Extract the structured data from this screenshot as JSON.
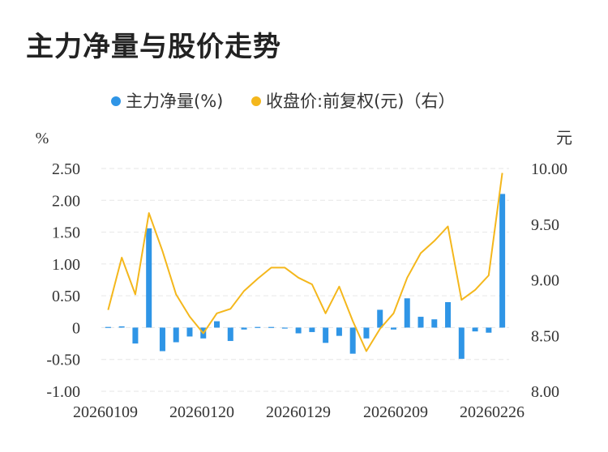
{
  "title": "主力净量与股价走势",
  "colors": {
    "bar": "#2f95e6",
    "line": "#f4b71c",
    "grid": "#e6e6e6",
    "text": "#333333"
  },
  "chart_data": {
    "type": "bar+line",
    "title": "主力净量与股价走势",
    "legend": [
      {
        "name": "主力净量(%)",
        "color": "#2f95e6",
        "marker": "dot"
      },
      {
        "name": "收盘价:前复权(元)（右）",
        "color": "#f4b71c",
        "marker": "dot"
      }
    ],
    "legend_position": "top-center",
    "grid": true,
    "left_axis": {
      "unit": "%",
      "range": [
        -1.0,
        2.5
      ],
      "ticks": [
        "2.50",
        "2.00",
        "1.50",
        "1.00",
        "0.50",
        "0",
        "-0.50",
        "-1.00"
      ]
    },
    "right_axis": {
      "unit": "元",
      "range": [
        8.0,
        10.0
      ],
      "ticks": [
        "10.00",
        "9.50",
        "9.00",
        "8.50",
        "8.00"
      ]
    },
    "x_tick_labels": [
      "20260109",
      "20260120",
      "20260129",
      "20260209",
      "20260226"
    ],
    "series": [
      {
        "name": "主力净量(%)",
        "type": "bar",
        "axis": "left",
        "values": [
          0.01,
          0.02,
          -0.25,
          1.56,
          -0.37,
          -0.23,
          -0.14,
          -0.17,
          0.1,
          -0.21,
          -0.03,
          0.01,
          0.01,
          0.0,
          -0.09,
          -0.07,
          -0.24,
          -0.13,
          -0.41,
          -0.17,
          0.28,
          -0.03,
          0.46,
          0.17,
          0.13,
          0.4,
          -0.49,
          -0.06,
          -0.08,
          2.1
        ]
      },
      {
        "name": "收盘价:前复权(元)",
        "type": "line",
        "axis": "right",
        "values": [
          8.73,
          9.2,
          8.87,
          9.6,
          9.26,
          8.87,
          8.67,
          8.52,
          8.7,
          8.74,
          8.9,
          9.01,
          9.11,
          9.11,
          9.02,
          8.96,
          8.7,
          8.94,
          8.63,
          8.36,
          8.56,
          8.7,
          9.02,
          9.24,
          9.35,
          9.48,
          8.82,
          8.91,
          9.04,
          9.96
        ]
      }
    ]
  }
}
